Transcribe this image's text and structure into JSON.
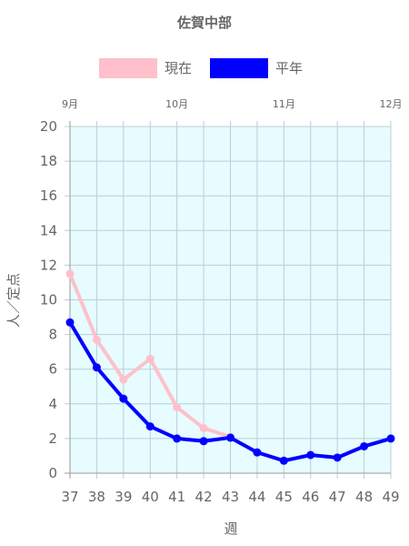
{
  "chart_data": {
    "type": "line",
    "title": "佐賀中部",
    "xlabel": "週",
    "ylabel": "人／定点",
    "x": [
      37,
      38,
      39,
      40,
      41,
      42,
      43,
      44,
      45,
      46,
      47,
      48,
      49
    ],
    "ylim": [
      0,
      20
    ],
    "yticks": [
      0,
      2,
      4,
      6,
      8,
      10,
      12,
      14,
      16,
      18,
      20
    ],
    "month_labels": [
      {
        "label": "9月",
        "x": 37
      },
      {
        "label": "10月",
        "x": 41
      },
      {
        "label": "11月",
        "x": 45
      },
      {
        "label": "12月",
        "x": 49
      }
    ],
    "series": [
      {
        "name": "現在",
        "color": "#ffc0cb",
        "values": [
          11.5,
          7.7,
          5.4,
          6.6,
          3.8,
          2.6,
          2.1,
          null,
          null,
          null,
          null,
          null,
          null
        ]
      },
      {
        "name": "平年",
        "color": "#0000ff",
        "values": [
          8.7,
          6.1,
          4.3,
          2.7,
          2.0,
          1.85,
          2.05,
          1.2,
          0.72,
          1.05,
          0.9,
          1.55,
          2.0
        ]
      }
    ],
    "legend_position": "top",
    "grid": true,
    "plot_background": "#e6fcff"
  }
}
